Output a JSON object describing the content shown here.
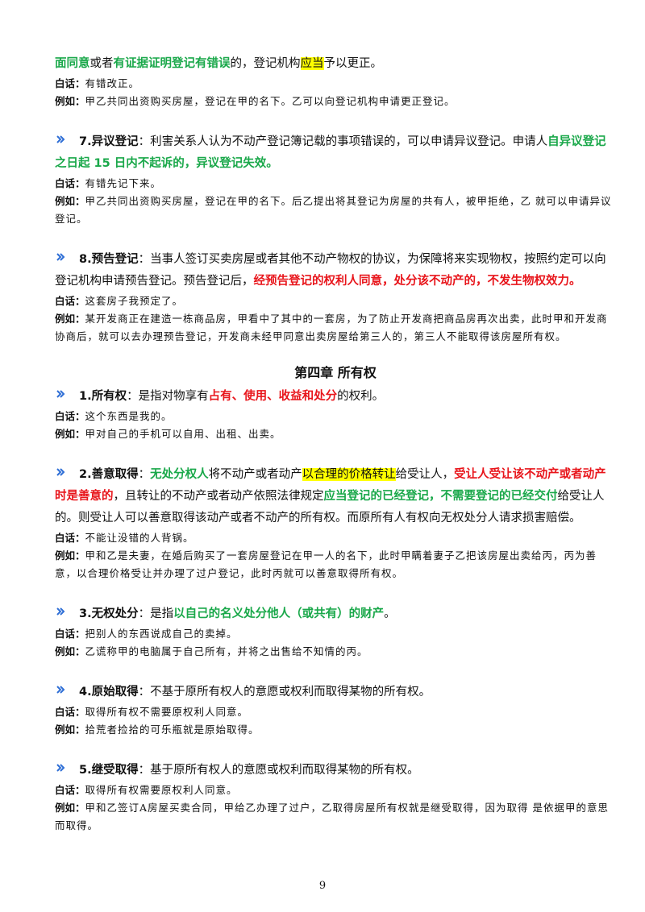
{
  "blocks": [
    {
      "runs": [
        {
          "text": "面同意",
          "style": "green"
        },
        {
          "text": "或者"
        },
        {
          "text": "有证据证明登记有错误",
          "style": "green"
        },
        {
          "text": "的，登记机构"
        },
        {
          "text": "应当",
          "style": "hl"
        },
        {
          "text": "予以更正。"
        }
      ],
      "notes": [
        {
          "label": "白话：",
          "text": "有错改正。"
        },
        {
          "label": "例如：",
          "text": "甲乙共同出资购买房屋，登记在甲的名下。乙可以向登记机构申请更正登记。"
        }
      ]
    },
    {
      "heading": "7.异议登记",
      "runs": [
        {
          "text": "：利害关系人认为不动产登记簿记载的事项错误的，可以申请异议登记。申请人"
        },
        {
          "text": "自异议登记之日起 15 日内不起诉的，异议登记失效。",
          "style": "green"
        }
      ],
      "notes": [
        {
          "label": "白话：",
          "text": "有错先记下来。"
        },
        {
          "label": "例如：",
          "text": "甲乙共同出资购买房屋，登记在甲的名下。后乙提出将其登记为房屋的共有人，被甲拒绝，乙 就可以申请异议登记。"
        }
      ]
    },
    {
      "heading": "8.预告登记",
      "runs": [
        {
          "text": "：当事人签订买卖房屋或者其他不动产物权的协议，为保障将来实现物权，按照约定可以向登记机构申请预告登记。预告登记后，"
        },
        {
          "text": "经预告登记的权利人同意，处分该不动产的，不发生物权效力。",
          "style": "red"
        }
      ],
      "notes": [
        {
          "label": "白话：",
          "text": "这套房子我预定了。"
        },
        {
          "label": "例如：",
          "text": "某开发商正在建造一栋商品房，甲看中了其中的一套房，为了防止开发商把商品房再次出卖，此时甲和开发商协商后，就可以去办理预告登记，开发商未经甲同意出卖房屋给第三人的，第三人不能取得该房屋所有权。"
        }
      ]
    },
    {
      "chapter": "第四章 所有权"
    },
    {
      "heading": "1.所有权",
      "runs": [
        {
          "text": "：是指对物享有"
        },
        {
          "text": "占有、使用、收益和处分",
          "style": "red"
        },
        {
          "text": "的权利。"
        }
      ],
      "notes": [
        {
          "label": "白话：",
          "text": "这个东西是我的。"
        },
        {
          "label": "例如：",
          "text": "甲对自己的手机可以自用、出租、出卖。"
        }
      ]
    },
    {
      "heading": "2.善意取得",
      "runs": [
        {
          "text": "："
        },
        {
          "text": "无处分权人",
          "style": "green"
        },
        {
          "text": "将不动产或者动产"
        },
        {
          "text": "以合理的价格转让",
          "style": "hl"
        },
        {
          "text": "给受让人，"
        },
        {
          "text": "受让人受让该不动产或者动产 时是善意的",
          "style": "red"
        },
        {
          "text": "，且转让的不动产或者动产依照法律规定"
        },
        {
          "text": "应当登记的已经登记，不需要登记的已经交付",
          "style": "green"
        },
        {
          "text": "给受让人 的。则受让人可以善意取得该动产或者不动产的所有权。而原所有人有权向无权处分人请求损害赔偿。"
        }
      ],
      "notes": [
        {
          "label": "白话：",
          "text": "不能让没错的人背锅。"
        },
        {
          "label": "例如：",
          "text": "甲和乙是夫妻，在婚后购买了一套房屋登记在甲一人的名下，此时甲瞒着妻子乙把该房屋出卖给丙，丙为善意，以合理价格受让并办理了过户登记，此时丙就可以善意取得所有权。"
        }
      ]
    },
    {
      "heading": "3.无权处分",
      "runs": [
        {
          "text": "：是指"
        },
        {
          "text": "以自己的名义处分他人（或共有）的财产",
          "style": "green"
        },
        {
          "text": "。"
        }
      ],
      "notes": [
        {
          "label": "白话：",
          "text": "把别人的东西说成自己的卖掉。"
        },
        {
          "label": "例如：",
          "text": "乙谎称甲的电脑属于自己所有，并将之出售给不知情的丙。"
        }
      ]
    },
    {
      "heading": "4.原始取得",
      "runs": [
        {
          "text": "：不基于原所有权人的意愿或权利而取得某物的所有权。"
        }
      ],
      "notes": [
        {
          "label": "白话：",
          "text": "取得所有权不需要原权利人同意。"
        },
        {
          "label": "例如：",
          "text": "拾荒者捡拾的可乐瓶就是原始取得。"
        }
      ]
    },
    {
      "heading": "5.继受取得",
      "runs": [
        {
          "text": "：基于原所有权人的意愿或权利而取得某物的所有权。"
        }
      ],
      "notes": [
        {
          "label": "白话：",
          "text": "取得所有权需要原权利人同意。"
        },
        {
          "label": "例如：",
          "text": "甲和乙签订A房屋买卖合同，甲给乙办理了过户，乙取得房屋所有权就是继受取得，因为取得 是依据甲的意思而取得。"
        }
      ]
    }
  ],
  "page_number": "9"
}
